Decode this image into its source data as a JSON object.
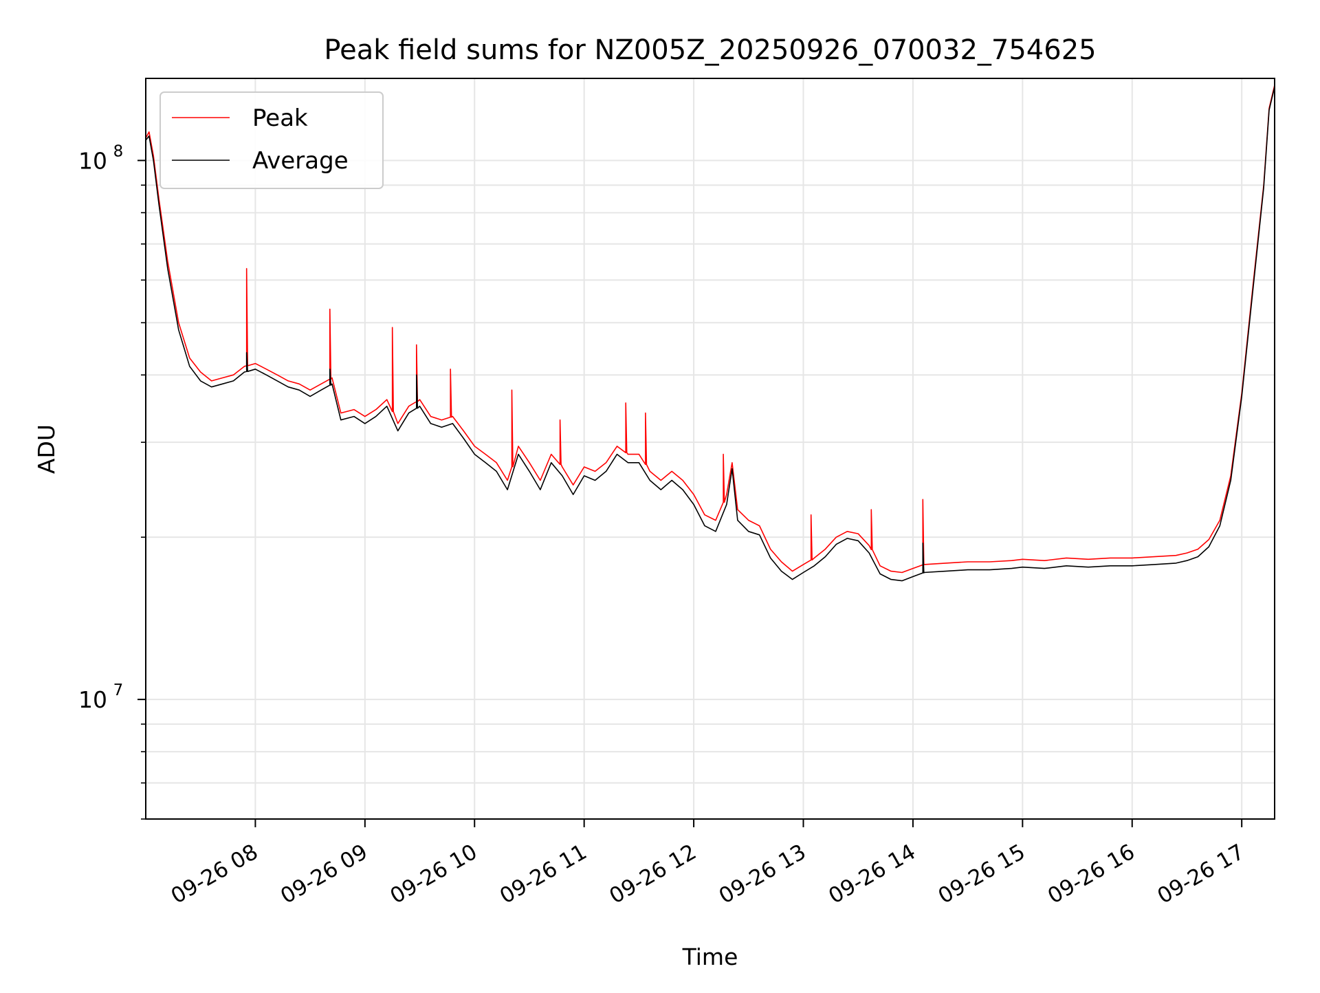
{
  "chart_data": {
    "type": "line",
    "title": "Peak field sums for NZ005Z_20250926_070032_754625",
    "xlabel": "Time",
    "ylabel": "ADU",
    "yscale": "log",
    "ylim": [
      6000000,
      142000000
    ],
    "xlim_hours": [
      7.0,
      17.3
    ],
    "grid": true,
    "legend_position": "upper-left",
    "x_ticks": [
      {
        "hour": 8,
        "label": "09-26 08"
      },
      {
        "hour": 9,
        "label": "09-26 09"
      },
      {
        "hour": 10,
        "label": "09-26 10"
      },
      {
        "hour": 11,
        "label": "09-26 11"
      },
      {
        "hour": 12,
        "label": "09-26 12"
      },
      {
        "hour": 13,
        "label": "09-26 13"
      },
      {
        "hour": 14,
        "label": "09-26 14"
      },
      {
        "hour": 15,
        "label": "09-26 15"
      },
      {
        "hour": 16,
        "label": "09-26 16"
      },
      {
        "hour": 17,
        "label": "09-26 17"
      }
    ],
    "y_major_ticks": [
      {
        "value": 10000000,
        "base": "10",
        "exp": "7"
      },
      {
        "value": 100000000,
        "base": "10",
        "exp": "8"
      }
    ],
    "y_minor_ticks": [
      6000000,
      7000000,
      8000000,
      9000000,
      20000000,
      30000000,
      40000000,
      50000000,
      60000000,
      70000000,
      80000000,
      90000000
    ],
    "series": [
      {
        "name": "Peak",
        "color": "#ff0000",
        "points": [
          [
            7.0,
            110000000
          ],
          [
            7.03,
            113000000
          ],
          [
            7.07,
            102000000
          ],
          [
            7.12,
            85000000
          ],
          [
            7.2,
            65000000
          ],
          [
            7.3,
            50000000
          ],
          [
            7.4,
            43000000
          ],
          [
            7.5,
            40500000
          ],
          [
            7.6,
            39000000
          ],
          [
            7.7,
            39500000
          ],
          [
            7.8,
            40000000
          ],
          [
            7.9,
            41500000
          ],
          [
            8.0,
            42000000
          ],
          [
            8.1,
            41000000
          ],
          [
            8.2,
            40000000
          ],
          [
            8.3,
            39000000
          ],
          [
            8.4,
            38500000
          ],
          [
            8.5,
            37500000
          ],
          [
            8.6,
            38500000
          ],
          [
            8.7,
            39500000
          ],
          [
            8.78,
            34000000
          ],
          [
            8.9,
            34500000
          ],
          [
            9.0,
            33500000
          ],
          [
            9.1,
            34500000
          ],
          [
            9.2,
            36000000
          ],
          [
            9.3,
            32500000
          ],
          [
            9.4,
            35000000
          ],
          [
            9.5,
            36000000
          ],
          [
            9.6,
            33500000
          ],
          [
            9.7,
            33000000
          ],
          [
            9.8,
            33500000
          ],
          [
            9.9,
            31500000
          ],
          [
            10.0,
            29500000
          ],
          [
            10.1,
            28500000
          ],
          [
            10.2,
            27500000
          ],
          [
            10.3,
            25500000
          ],
          [
            10.4,
            29500000
          ],
          [
            10.5,
            27500000
          ],
          [
            10.6,
            25500000
          ],
          [
            10.7,
            28500000
          ],
          [
            10.8,
            27000000
          ],
          [
            10.9,
            25000000
          ],
          [
            11.0,
            27000000
          ],
          [
            11.1,
            26500000
          ],
          [
            11.2,
            27500000
          ],
          [
            11.3,
            29500000
          ],
          [
            11.4,
            28500000
          ],
          [
            11.5,
            28500000
          ],
          [
            11.6,
            26500000
          ],
          [
            11.7,
            25500000
          ],
          [
            11.8,
            26500000
          ],
          [
            11.9,
            25500000
          ],
          [
            12.0,
            24000000
          ],
          [
            12.1,
            22000000
          ],
          [
            12.2,
            21500000
          ],
          [
            12.3,
            24000000
          ],
          [
            12.35,
            27500000
          ],
          [
            12.4,
            22500000
          ],
          [
            12.5,
            21500000
          ],
          [
            12.6,
            21000000
          ],
          [
            12.7,
            19000000
          ],
          [
            12.8,
            18000000
          ],
          [
            12.9,
            17300000
          ],
          [
            13.0,
            17800000
          ],
          [
            13.1,
            18300000
          ],
          [
            13.2,
            19000000
          ],
          [
            13.3,
            20000000
          ],
          [
            13.4,
            20500000
          ],
          [
            13.5,
            20300000
          ],
          [
            13.6,
            19300000
          ],
          [
            13.7,
            17700000
          ],
          [
            13.8,
            17300000
          ],
          [
            13.9,
            17200000
          ],
          [
            14.0,
            17500000
          ],
          [
            14.1,
            17800000
          ],
          [
            14.3,
            17900000
          ],
          [
            14.5,
            18000000
          ],
          [
            14.7,
            18000000
          ],
          [
            14.9,
            18100000
          ],
          [
            15.0,
            18200000
          ],
          [
            15.2,
            18100000
          ],
          [
            15.4,
            18300000
          ],
          [
            15.6,
            18200000
          ],
          [
            15.8,
            18300000
          ],
          [
            16.0,
            18300000
          ],
          [
            16.2,
            18400000
          ],
          [
            16.4,
            18500000
          ],
          [
            16.5,
            18700000
          ],
          [
            16.6,
            19000000
          ],
          [
            16.7,
            19800000
          ],
          [
            16.8,
            21500000
          ],
          [
            16.9,
            26000000
          ],
          [
            17.0,
            37000000
          ],
          [
            17.1,
            58000000
          ],
          [
            17.2,
            90000000
          ],
          [
            17.25,
            125000000
          ],
          [
            17.3,
            138000000
          ]
        ],
        "spikes": [
          [
            7.92,
            63000000
          ],
          [
            8.68,
            53000000
          ],
          [
            9.25,
            49000000
          ],
          [
            9.47,
            45500000
          ],
          [
            9.78,
            41000000
          ],
          [
            10.34,
            37500000
          ],
          [
            10.78,
            33000000
          ],
          [
            11.38,
            35500000
          ],
          [
            11.56,
            34000000
          ],
          [
            12.27,
            28500000
          ],
          [
            14.09,
            23500000
          ],
          [
            13.62,
            22500000
          ],
          [
            13.07,
            22000000
          ]
        ]
      },
      {
        "name": "Average",
        "color": "#000000",
        "points": [
          [
            7.0,
            109000000
          ],
          [
            7.03,
            111000000
          ],
          [
            7.07,
            100000000
          ],
          [
            7.12,
            83000000
          ],
          [
            7.2,
            63000000
          ],
          [
            7.3,
            48500000
          ],
          [
            7.4,
            41500000
          ],
          [
            7.5,
            39000000
          ],
          [
            7.6,
            38000000
          ],
          [
            7.7,
            38500000
          ],
          [
            7.8,
            39000000
          ],
          [
            7.9,
            40500000
          ],
          [
            8.0,
            41000000
          ],
          [
            8.1,
            40000000
          ],
          [
            8.2,
            39000000
          ],
          [
            8.3,
            38000000
          ],
          [
            8.4,
            37500000
          ],
          [
            8.5,
            36500000
          ],
          [
            8.6,
            37500000
          ],
          [
            8.7,
            38500000
          ],
          [
            8.78,
            33000000
          ],
          [
            8.9,
            33500000
          ],
          [
            9.0,
            32500000
          ],
          [
            9.1,
            33500000
          ],
          [
            9.2,
            35000000
          ],
          [
            9.3,
            31500000
          ],
          [
            9.4,
            34000000
          ],
          [
            9.5,
            35000000
          ],
          [
            9.6,
            32500000
          ],
          [
            9.7,
            32000000
          ],
          [
            9.8,
            32500000
          ],
          [
            9.9,
            30500000
          ],
          [
            10.0,
            28500000
          ],
          [
            10.1,
            27500000
          ],
          [
            10.2,
            26500000
          ],
          [
            10.3,
            24500000
          ],
          [
            10.4,
            28500000
          ],
          [
            10.5,
            26500000
          ],
          [
            10.6,
            24500000
          ],
          [
            10.7,
            27500000
          ],
          [
            10.8,
            26000000
          ],
          [
            10.9,
            24000000
          ],
          [
            11.0,
            26000000
          ],
          [
            11.1,
            25500000
          ],
          [
            11.2,
            26500000
          ],
          [
            11.3,
            28500000
          ],
          [
            11.4,
            27500000
          ],
          [
            11.5,
            27500000
          ],
          [
            11.6,
            25500000
          ],
          [
            11.7,
            24500000
          ],
          [
            11.8,
            25500000
          ],
          [
            11.9,
            24500000
          ],
          [
            12.0,
            23000000
          ],
          [
            12.1,
            21000000
          ],
          [
            12.2,
            20500000
          ],
          [
            12.3,
            23000000
          ],
          [
            12.35,
            26800000
          ],
          [
            12.4,
            21500000
          ],
          [
            12.5,
            20500000
          ],
          [
            12.6,
            20200000
          ],
          [
            12.7,
            18300000
          ],
          [
            12.8,
            17300000
          ],
          [
            12.9,
            16700000
          ],
          [
            13.0,
            17200000
          ],
          [
            13.1,
            17700000
          ],
          [
            13.2,
            18400000
          ],
          [
            13.3,
            19400000
          ],
          [
            13.4,
            19900000
          ],
          [
            13.5,
            19700000
          ],
          [
            13.6,
            18700000
          ],
          [
            13.7,
            17100000
          ],
          [
            13.8,
            16700000
          ],
          [
            13.9,
            16600000
          ],
          [
            14.0,
            16900000
          ],
          [
            14.1,
            17200000
          ],
          [
            14.3,
            17300000
          ],
          [
            14.5,
            17400000
          ],
          [
            14.7,
            17400000
          ],
          [
            14.9,
            17500000
          ],
          [
            15.0,
            17600000
          ],
          [
            15.2,
            17500000
          ],
          [
            15.4,
            17700000
          ],
          [
            15.6,
            17600000
          ],
          [
            15.8,
            17700000
          ],
          [
            16.0,
            17700000
          ],
          [
            16.2,
            17800000
          ],
          [
            16.4,
            17900000
          ],
          [
            16.5,
            18100000
          ],
          [
            16.6,
            18400000
          ],
          [
            16.7,
            19200000
          ],
          [
            16.8,
            21000000
          ],
          [
            16.9,
            25500000
          ],
          [
            17.0,
            36500000
          ],
          [
            17.1,
            57000000
          ],
          [
            17.2,
            89000000
          ],
          [
            17.25,
            124000000
          ],
          [
            17.3,
            137000000
          ]
        ],
        "spikes": [
          [
            7.92,
            44000000
          ],
          [
            8.68,
            41000000
          ],
          [
            9.47,
            40000000
          ],
          [
            14.09,
            19500000
          ]
        ]
      }
    ]
  }
}
